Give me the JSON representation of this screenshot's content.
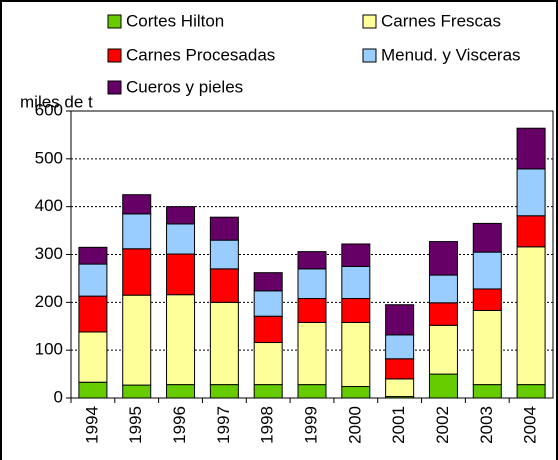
{
  "chart_data": {
    "type": "stacked_bar",
    "y_label": "miles de t",
    "categories": [
      "1994",
      "1995",
      "1996",
      "1997",
      "1998",
      "1999",
      "2000",
      "2001",
      "2002",
      "2003",
      "2004"
    ],
    "series": [
      {
        "name": "Cortes Hilton",
        "color": "#66cc00",
        "values": [
          33,
          27,
          28,
          28,
          28,
          28,
          24,
          3,
          50,
          28,
          28
        ]
      },
      {
        "name": "Carnes Frescas",
        "color": "#ffff99",
        "values": [
          105,
          188,
          188,
          172,
          88,
          130,
          134,
          37,
          102,
          155,
          288
        ]
      },
      {
        "name": "Carnes Procesadas",
        "color": "#ff0000",
        "values": [
          75,
          97,
          85,
          70,
          55,
          50,
          50,
          42,
          47,
          45,
          65
        ]
      },
      {
        "name": "Menud. y Visceras",
        "color": "#99ccff",
        "values": [
          67,
          73,
          63,
          60,
          53,
          62,
          67,
          50,
          58,
          77,
          98
        ]
      },
      {
        "name": "Cueros y pieles",
        "color": "#660066",
        "values": [
          35,
          40,
          36,
          48,
          38,
          36,
          47,
          63,
          70,
          60,
          85
        ]
      }
    ],
    "ylim": [
      0,
      600
    ],
    "yticks": [
      0,
      100,
      200,
      300,
      400,
      500,
      600
    ],
    "grid": true
  }
}
